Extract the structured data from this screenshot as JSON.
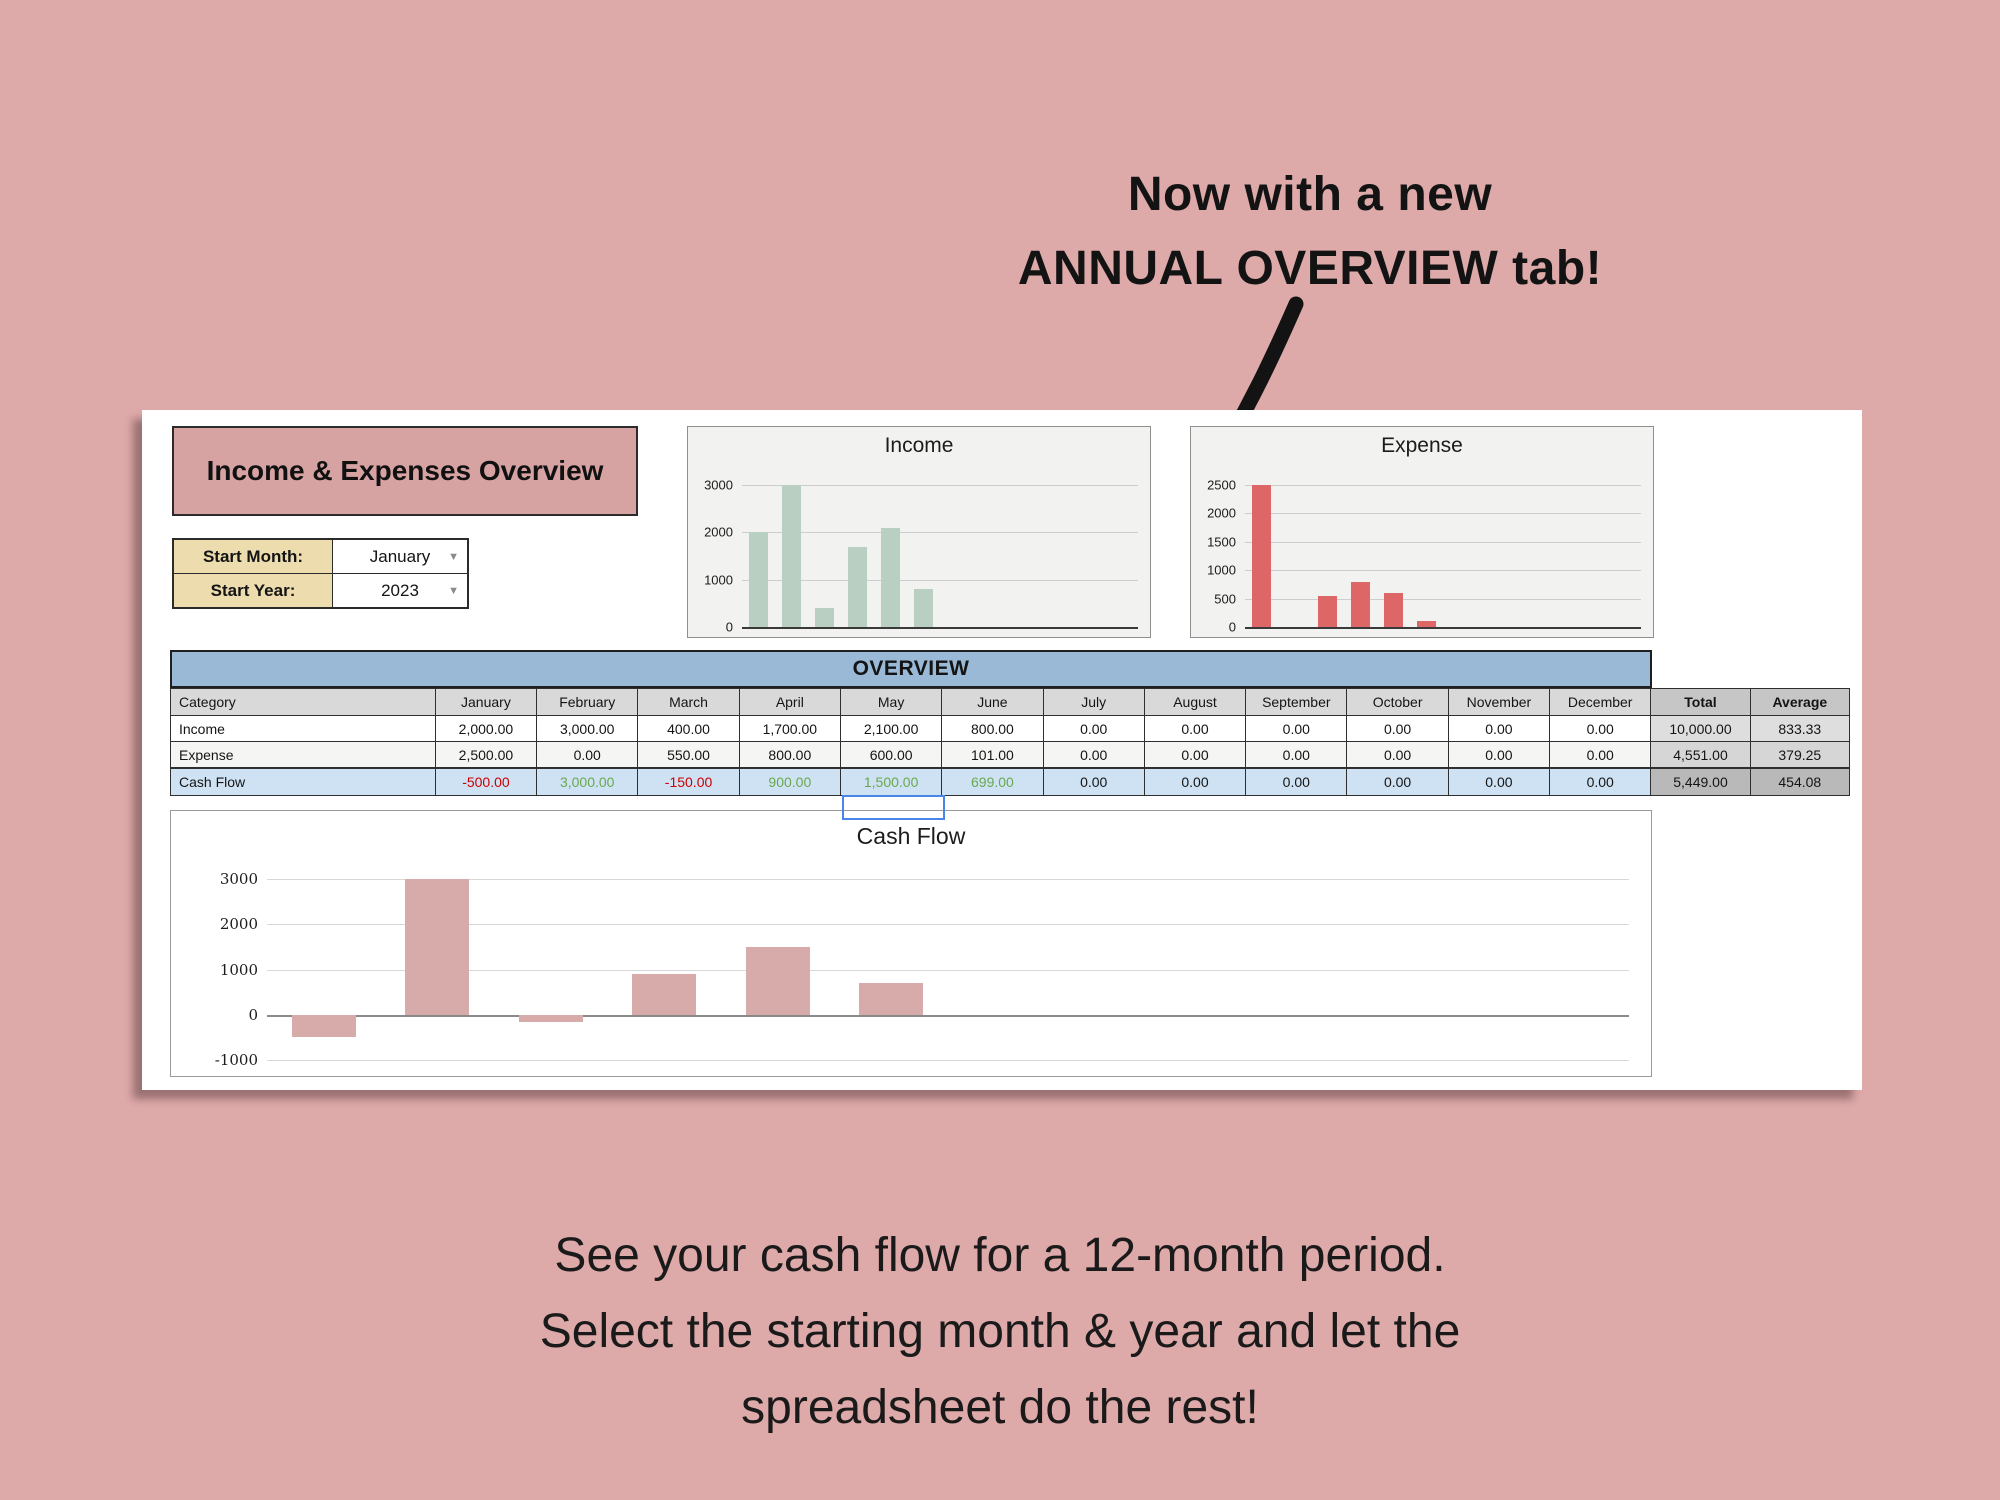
{
  "poster": {
    "headline_line1": "Now with a new",
    "headline_line2": "ANNUAL OVERVIEW tab!",
    "caption_line1": "See your cash flow for a 12-month period.",
    "caption_line2": "Select the starting month & year and let the",
    "caption_line3": "spreadsheet do the rest!"
  },
  "sheet": {
    "title": "Income & Expenses Overview",
    "controls": {
      "start_month_label": "Start Month:",
      "start_month_value": "January",
      "start_year_label": "Start Year:",
      "start_year_value": "2023",
      "dropdown_icon": "▼"
    },
    "table": {
      "section_title": "OVERVIEW",
      "columns": [
        "Category",
        "January",
        "February",
        "March",
        "April",
        "May",
        "June",
        "July",
        "August",
        "September",
        "October",
        "November",
        "December",
        "Total",
        "Average"
      ],
      "rows": [
        {
          "category": "Income",
          "values": [
            "2,000.00",
            "3,000.00",
            "400.00",
            "1,700.00",
            "2,100.00",
            "800.00",
            "0.00",
            "0.00",
            "0.00",
            "0.00",
            "0.00",
            "0.00"
          ],
          "total": "10,000.00",
          "average": "833.33"
        },
        {
          "category": "Expense",
          "values": [
            "2,500.00",
            "0.00",
            "550.00",
            "800.00",
            "600.00",
            "101.00",
            "0.00",
            "0.00",
            "0.00",
            "0.00",
            "0.00",
            "0.00"
          ],
          "total": "4,551.00",
          "average": "379.25"
        },
        {
          "category": "Cash Flow",
          "values": [
            "-500.00",
            "3,000.00",
            "-150.00",
            "900.00",
            "1,500.00",
            "699.00",
            "0.00",
            "0.00",
            "0.00",
            "0.00",
            "0.00",
            "0.00"
          ],
          "total": "5,449.00",
          "average": "454.08"
        }
      ]
    }
  },
  "chart_data": [
    {
      "type": "bar",
      "title": "Income",
      "categories": [
        "January",
        "February",
        "March",
        "April",
        "May",
        "June",
        "July",
        "August",
        "September",
        "October",
        "November",
        "December"
      ],
      "values": [
        2000,
        3000,
        400,
        1700,
        2100,
        800,
        0,
        0,
        0,
        0,
        0,
        0
      ],
      "ticks": [
        0,
        1000,
        2000,
        3000
      ],
      "ylim": [
        0,
        3000
      ],
      "bar_color": "#b8cfc1",
      "grid": true,
      "x_tick_labels_shown": false,
      "legend": "none"
    },
    {
      "type": "bar",
      "title": "Expense",
      "categories": [
        "January",
        "February",
        "March",
        "April",
        "May",
        "June",
        "July",
        "August",
        "September",
        "October",
        "November",
        "December"
      ],
      "values": [
        2500,
        0,
        550,
        800,
        600,
        101,
        0,
        0,
        0,
        0,
        0,
        0
      ],
      "ticks": [
        0,
        500,
        1000,
        1500,
        2000,
        2500
      ],
      "ylim": [
        0,
        2500
      ],
      "bar_color": "#dd6666",
      "grid": true,
      "x_tick_labels_shown": false,
      "legend": "none"
    },
    {
      "type": "bar",
      "title": "Cash Flow",
      "categories": [
        "January",
        "February",
        "March",
        "April",
        "May",
        "June",
        "July",
        "August",
        "September",
        "October",
        "November",
        "December"
      ],
      "values": [
        -500,
        3000,
        -150,
        900,
        1500,
        699,
        0,
        0,
        0,
        0,
        0,
        0
      ],
      "ticks": [
        -1000,
        0,
        1000,
        2000,
        3000
      ],
      "ylim": [
        -1000,
        3000
      ],
      "bar_color": "#d8abab",
      "grid": true,
      "x_tick_labels_shown": false,
      "legend": "none"
    }
  ],
  "colors": {
    "background": "#dea9a9",
    "title_box": "#d6a2a2",
    "label_cell": "#ecdcae",
    "overview_bar": "#9ab9d6",
    "cashflow_row": "#cfe2f3",
    "income_bar": "#b8cfc1",
    "expense_bar": "#dd6666",
    "cashflow_bar": "#d8abab",
    "negative_text": "#cc0000",
    "positive_text": "#6aa84f",
    "selection_border": "#4a86e8"
  }
}
